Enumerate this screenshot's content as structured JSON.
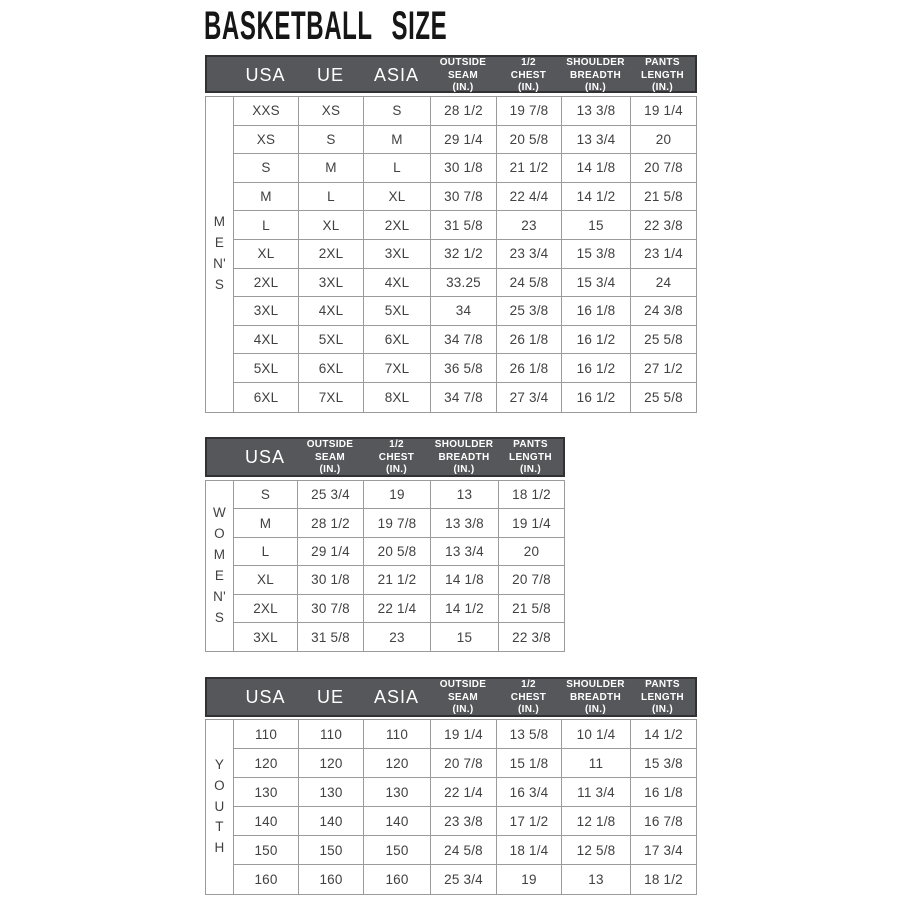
{
  "title": "BASKETBALL SIZE",
  "colors": {
    "page_bg": "#ffffff",
    "header_bg": "#56575a",
    "header_border": "#323234",
    "header_text": "#ffffff",
    "grid_line": "#9b9b9b",
    "body_text": "#414042",
    "title_text": "#161616"
  },
  "tables": [
    {
      "id": "mens",
      "group_label": "MEN'S",
      "headers": [
        "USA",
        "UE",
        "ASIA",
        "OUTSIDE\nSEAM\n(IN.)",
        "1/2\nCHEST\n(IN.)",
        "SHOULDER\nBREADTH\n(IN.)",
        "PANTS\nLENGTH\n(IN.)"
      ],
      "rows": [
        [
          "XXS",
          "XS",
          "S",
          "28 1/2",
          "19 7/8",
          "13 3/8",
          "19 1/4"
        ],
        [
          "XS",
          "S",
          "M",
          "29 1/4",
          "20 5/8",
          "13 3/4",
          "20"
        ],
        [
          "S",
          "M",
          "L",
          "30 1/8",
          "21 1/2",
          "14 1/8",
          "20 7/8"
        ],
        [
          "M",
          "L",
          "XL",
          "30 7/8",
          "22 4/4",
          "14 1/2",
          "21 5/8"
        ],
        [
          "L",
          "XL",
          "2XL",
          "31 5/8",
          "23",
          "15",
          "22 3/8"
        ],
        [
          "XL",
          "2XL",
          "3XL",
          "32 1/2",
          "23 3/4",
          "15 3/8",
          "23 1/4"
        ],
        [
          "2XL",
          "3XL",
          "4XL",
          "33.25",
          "24 5/8",
          "15 3/4",
          "24"
        ],
        [
          "3XL",
          "4XL",
          "5XL",
          "34",
          "25 3/8",
          "16 1/8",
          "24 3/8"
        ],
        [
          "4XL",
          "5XL",
          "6XL",
          "34 7/8",
          "26 1/8",
          "16 1/2",
          "25 5/8"
        ],
        [
          "5XL",
          "6XL",
          "7XL",
          "36 5/8",
          "26 1/8",
          "16 1/2",
          "27 1/2"
        ],
        [
          "6XL",
          "7XL",
          "8XL",
          "34 7/8",
          "27 3/4",
          "16 1/2",
          "25 5/8"
        ]
      ]
    },
    {
      "id": "womens",
      "group_label": "WOMEN'S",
      "headers": [
        "USA",
        "OUTSIDE\nSEAM\n(IN.)",
        "1/2\nCHEST\n(IN.)",
        "SHOULDER\nBREADTH\n(IN.)",
        "PANTS\nLENGTH\n(IN.)"
      ],
      "rows": [
        [
          "S",
          "25 3/4",
          "19",
          "13",
          "18 1/2"
        ],
        [
          "M",
          "28 1/2",
          "19 7/8",
          "13 3/8",
          "19 1/4"
        ],
        [
          "L",
          "29 1/4",
          "20 5/8",
          "13 3/4",
          "20"
        ],
        [
          "XL",
          "30 1/8",
          "21 1/2",
          "14 1/8",
          "20 7/8"
        ],
        [
          "2XL",
          "30 7/8",
          "22 1/4",
          "14 1/2",
          "21 5/8"
        ],
        [
          "3XL",
          "31 5/8",
          "23",
          "15",
          "22 3/8"
        ]
      ]
    },
    {
      "id": "youth",
      "group_label": "YOUTH",
      "headers": [
        "USA",
        "UE",
        "ASIA",
        "OUTSIDE\nSEAM\n(IN.)",
        "1/2\nCHEST\n(IN.)",
        "SHOULDER\nBREADTH\n(IN.)",
        "PANTS\nLENGTH\n(IN.)"
      ],
      "rows": [
        [
          "110",
          "110",
          "110",
          "19 1/4",
          "13 5/8",
          "10 1/4",
          "14 1/2"
        ],
        [
          "120",
          "120",
          "120",
          "20 7/8",
          "15 1/8",
          "11",
          "15 3/8"
        ],
        [
          "130",
          "130",
          "130",
          "22 1/4",
          "16 3/4",
          "11 3/4",
          "16 1/8"
        ],
        [
          "140",
          "140",
          "140",
          "23 3/8",
          "17 1/2",
          "12 1/8",
          "16 7/8"
        ],
        [
          "150",
          "150",
          "150",
          "24 5/8",
          "18 1/4",
          "12 5/8",
          "17 3/4"
        ],
        [
          "160",
          "160",
          "160",
          "25 3/4",
          "19",
          "13",
          "18 1/2"
        ]
      ]
    }
  ]
}
